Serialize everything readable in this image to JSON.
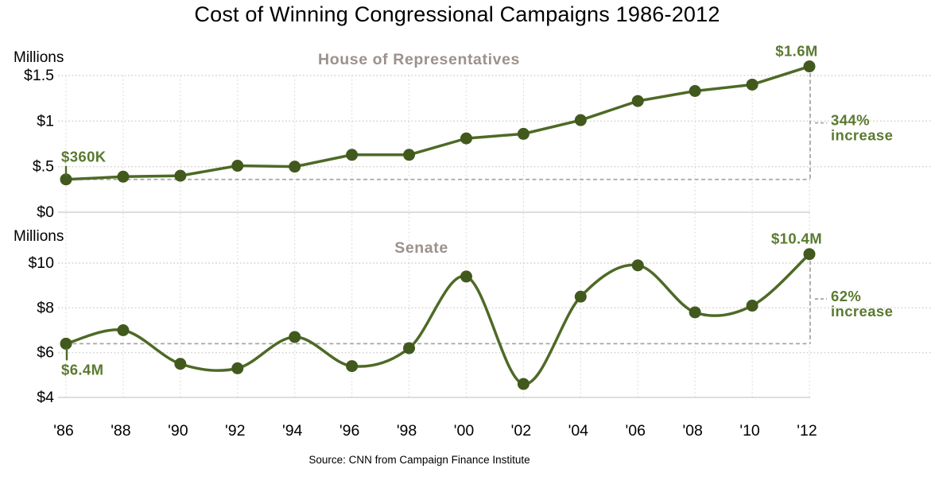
{
  "title": "Cost of Winning Congressional Campaigns 1986-2012",
  "source": "Source: CNN from Campaign Finance Institute",
  "colors": {
    "line": "#4e6a26",
    "dot": "#42591e",
    "annotation_text": "#5a7a30",
    "panel_title": "#9c918c",
    "grid_dotted_h": "#d8d4d0",
    "grid_dotted_v": "#e1deda",
    "axis_solid": "#d6d2cf",
    "dashed_line": "#aaa7a2",
    "axis_text": "#000000"
  },
  "chart_data": [
    {
      "type": "line",
      "title": "House of Representatives",
      "axis_unit_label": "Millions",
      "smooth": false,
      "categories": [
        "'86",
        "'88",
        "'90",
        "'92",
        "'94",
        "'96",
        "'98",
        "'00",
        "'02",
        "'04",
        "'06",
        "'08",
        "'10",
        "'12"
      ],
      "values": [
        0.36,
        0.39,
        0.4,
        0.51,
        0.5,
        0.63,
        0.63,
        0.81,
        0.86,
        1.01,
        1.22,
        1.33,
        1.4,
        1.6
      ],
      "y_ticks": [
        {
          "label": "$1.5",
          "value": 1.5
        },
        {
          "label": "$1",
          "value": 1.0
        },
        {
          "label": "$.5",
          "value": 0.5
        },
        {
          "label": "$0",
          "value": 0.0
        }
      ],
      "ylim": [
        0,
        1.5
      ],
      "grid": true,
      "legend_position": "none",
      "annotations": {
        "start_label": "$360K",
        "end_label": "$1.6M",
        "increase_line1": "344%",
        "increase_line2": "increase"
      }
    },
    {
      "type": "line",
      "title": "Senate",
      "axis_unit_label": "Millions",
      "smooth": true,
      "categories": [
        "'86",
        "'88",
        "'90",
        "'92",
        "'94",
        "'96",
        "'98",
        "'00",
        "'02",
        "'04",
        "'06",
        "'08",
        "'10",
        "'12"
      ],
      "values": [
        6.4,
        7.0,
        5.5,
        5.3,
        6.7,
        5.4,
        6.2,
        9.4,
        4.6,
        8.5,
        9.9,
        7.8,
        8.1,
        10.4
      ],
      "y_ticks": [
        {
          "label": "$10",
          "value": 10
        },
        {
          "label": "$8",
          "value": 8
        },
        {
          "label": "$6",
          "value": 6
        },
        {
          "label": "$4",
          "value": 4
        }
      ],
      "ylim": [
        4,
        10
      ],
      "grid": true,
      "legend_position": "none",
      "annotations": {
        "start_label": "$6.4M",
        "end_label": "$10.4M",
        "increase_line1": "62%",
        "increase_line2": "increase"
      }
    }
  ]
}
